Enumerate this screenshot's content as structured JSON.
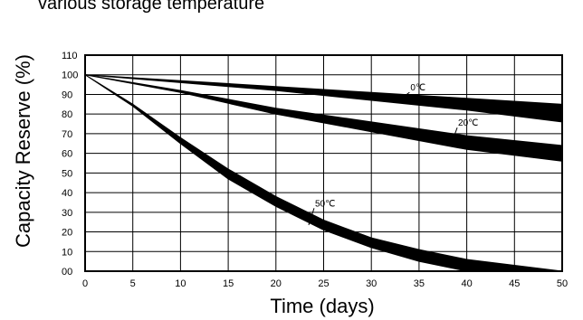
{
  "chart_data": {
    "type": "area",
    "title": "various storage temperature",
    "xlabel": "Time (days)",
    "ylabel": "Capacity Reserve (%)",
    "xlim": [
      0,
      50
    ],
    "ylim": [
      0,
      110
    ],
    "x_ticks": [
      "0",
      "5",
      "10",
      "15",
      "20",
      "25",
      "30",
      "35",
      "40",
      "45",
      "50"
    ],
    "y_ticks": [
      "00",
      "10",
      "20",
      "30",
      "40",
      "50",
      "60",
      "70",
      "80",
      "90",
      "100",
      "110"
    ],
    "grid": true,
    "band_color": "#000000",
    "series": [
      {
        "name": "0℃",
        "label_at": [
          34,
          92
        ],
        "x": [
          0,
          10,
          20,
          30,
          40,
          50
        ],
        "upper": [
          100,
          97,
          94,
          91,
          88,
          85
        ],
        "lower": [
          100,
          96,
          92,
          87,
          82,
          76
        ]
      },
      {
        "name": "20℃",
        "label_at": [
          39,
          74
        ],
        "x": [
          0,
          10,
          20,
          30,
          40,
          50
        ],
        "upper": [
          100,
          92,
          83,
          76,
          69,
          64
        ],
        "lower": [
          100,
          91,
          80,
          71,
          62,
          56
        ]
      },
      {
        "name": "50℃",
        "label_at": [
          24,
          33
        ],
        "x": [
          0,
          5,
          10,
          15,
          20,
          25,
          30,
          35,
          40,
          45,
          50
        ],
        "upper": [
          100,
          85,
          68,
          52,
          38,
          26,
          17,
          11,
          6,
          3,
          0
        ],
        "lower": [
          100,
          84,
          65,
          47,
          33,
          21,
          12,
          5,
          0,
          0,
          0
        ]
      }
    ]
  }
}
